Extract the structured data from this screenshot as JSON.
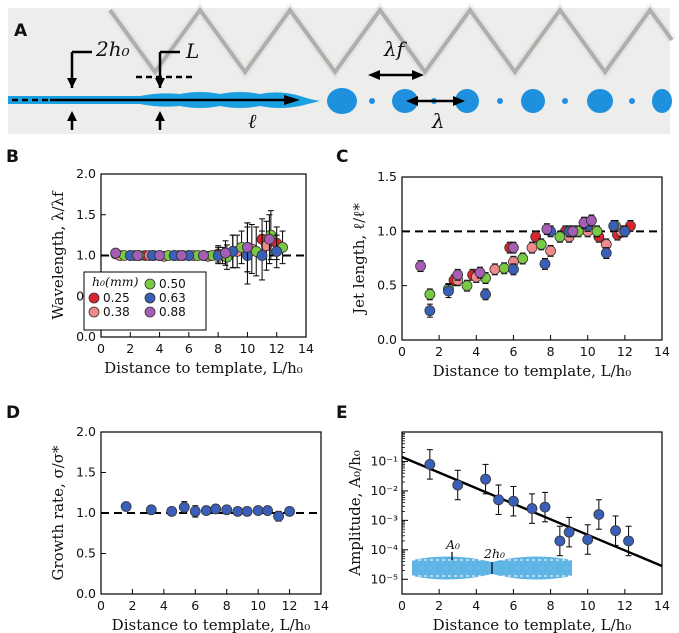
{
  "panel_letters": {
    "a": "A",
    "b": "B",
    "c": "C",
    "d": "D",
    "e": "E"
  },
  "photo": {
    "label_2h0": "2h₀",
    "label_L": "L",
    "label_lambda_f": "λf",
    "label_lambda": "λ",
    "label_ell": "ℓ",
    "colors": {
      "jet": "#1aa0e0",
      "drop": "#1e90dd",
      "background": "#ededeb",
      "template": "#8c8c8c"
    }
  },
  "colors": {
    "h025": "#d9262e",
    "h038": "#f08a8a",
    "h050": "#7ac943",
    "h063": "#3a5fb8",
    "h088": "#a55db5",
    "axis": "#000000",
    "fit_line": "#000000"
  },
  "legend": {
    "title": "h₀(mm)",
    "entries": [
      {
        "key": "h025",
        "label": "0.25"
      },
      {
        "key": "h050",
        "label": "0.50"
      },
      {
        "key": "h038",
        "label": "0.38"
      },
      {
        "key": "h063",
        "label": "0.63"
      },
      {
        "key": "h063b",
        "label": ""
      },
      {
        "key": "h088",
        "label": "0.88"
      }
    ]
  },
  "chart_data": [
    {
      "id": "B",
      "type": "scatter",
      "xlabel": "Distance to template, L/h₀",
      "ylabel": "Wavelength, λ/λf",
      "xlim": [
        0,
        14
      ],
      "ylim": [
        0,
        2.0
      ],
      "xticks": [
        "0",
        "2",
        "4",
        "6",
        "8",
        "10",
        "12",
        "14"
      ],
      "yticks": [
        "0.0",
        "0.5",
        "1.0",
        "1.5",
        "2.0"
      ],
      "reference_line": 1.0,
      "legend_placement": "lower-left",
      "series": [
        {
          "key": "h025",
          "x": [
            1.0,
            2.0,
            3.0,
            4.0,
            5.0,
            6.0,
            7.0,
            8.0,
            9.0,
            10.0,
            11.0,
            12.0
          ],
          "y": [
            1.02,
            1.0,
            1.0,
            1.0,
            1.0,
            1.0,
            1.0,
            1.02,
            1.05,
            1.1,
            1.2,
            1.15
          ],
          "err": [
            0.03,
            0.03,
            0.03,
            0.03,
            0.03,
            0.03,
            0.04,
            0.1,
            0.2,
            0.3,
            0.25,
            0.2
          ]
        },
        {
          "key": "h038",
          "x": [
            1.3,
            2.3,
            3.3,
            4.3,
            5.3,
            6.3,
            7.3,
            8.3,
            9.3,
            10.3,
            11.3
          ],
          "y": [
            1.0,
            1.0,
            1.0,
            0.99,
            1.0,
            1.0,
            0.99,
            1.0,
            1.05,
            1.08,
            1.12
          ],
          "err": [
            0.03,
            0.03,
            0.03,
            0.03,
            0.03,
            0.03,
            0.05,
            0.1,
            0.2,
            0.3,
            0.3
          ]
        },
        {
          "key": "h050",
          "x": [
            1.6,
            2.6,
            3.6,
            4.6,
            5.6,
            6.6,
            7.6,
            8.6,
            9.6,
            10.6,
            11.6,
            12.4
          ],
          "y": [
            1.0,
            1.0,
            1.0,
            1.0,
            1.0,
            1.0,
            1.0,
            0.98,
            1.1,
            1.05,
            1.25,
            1.1
          ],
          "err": [
            0.03,
            0.03,
            0.03,
            0.03,
            0.03,
            0.03,
            0.05,
            0.15,
            0.2,
            0.3,
            0.3,
            0.2
          ]
        },
        {
          "key": "h063",
          "x": [
            2.0,
            3.5,
            5.0,
            6.0,
            7.0,
            8.0,
            9.0,
            10.0,
            11.0,
            12.0
          ],
          "y": [
            1.0,
            1.0,
            1.0,
            1.0,
            1.0,
            1.0,
            1.05,
            1.0,
            1.0,
            1.05
          ],
          "err": [
            0.03,
            0.03,
            0.03,
            0.03,
            0.04,
            0.1,
            0.2,
            0.35,
            0.3,
            0.2
          ]
        },
        {
          "key": "h088",
          "x": [
            1.0,
            2.5,
            4.0,
            5.5,
            7.0,
            8.5,
            10.0,
            11.5
          ],
          "y": [
            1.03,
            1.0,
            1.0,
            1.0,
            1.0,
            1.03,
            1.1,
            1.2
          ],
          "err": [
            0.03,
            0.03,
            0.03,
            0.03,
            0.05,
            0.15,
            0.3,
            0.3
          ]
        }
      ]
    },
    {
      "id": "C",
      "type": "scatter",
      "xlabel": "Distance to template, L/h₀",
      "ylabel": "Jet length, ℓ/ℓ*",
      "xlim": [
        0,
        14
      ],
      "ylim": [
        0,
        1.5
      ],
      "xticks": [
        "0",
        "2",
        "4",
        "6",
        "8",
        "10",
        "12",
        "14"
      ],
      "yticks": [
        "0.0",
        "0.5",
        "1.0",
        "1.5"
      ],
      "reference_line": 1.0,
      "series": [
        {
          "key": "h025",
          "x": [
            2.8,
            3.8,
            5.8,
            7.2,
            8.8,
            10.6,
            11.6,
            12.3
          ],
          "y": [
            0.55,
            0.6,
            0.85,
            0.95,
            1.0,
            0.95,
            0.97,
            1.05
          ],
          "err": [
            0.05,
            0.05,
            0.05,
            0.05,
            0.05,
            0.05,
            0.05,
            0.05
          ]
        },
        {
          "key": "h038",
          "x": [
            3.0,
            4.0,
            5.0,
            6.0,
            7.0,
            8.0,
            9.0,
            10.0,
            11.0,
            11.8
          ],
          "y": [
            0.55,
            0.58,
            0.65,
            0.72,
            0.85,
            0.82,
            0.95,
            1.0,
            0.88,
            1.0
          ],
          "err": [
            0.05,
            0.05,
            0.05,
            0.05,
            0.05,
            0.05,
            0.05,
            0.05,
            0.05,
            0.05
          ]
        },
        {
          "key": "h050",
          "x": [
            1.5,
            2.5,
            3.5,
            4.5,
            5.5,
            6.5,
            7.5,
            8.5,
            9.5,
            10.5,
            11.5
          ],
          "y": [
            0.42,
            0.47,
            0.5,
            0.57,
            0.66,
            0.75,
            0.88,
            0.95,
            1.0,
            1.0,
            1.05
          ],
          "err": [
            0.05,
            0.05,
            0.05,
            0.05,
            0.05,
            0.05,
            0.05,
            0.05,
            0.05,
            0.05,
            0.05
          ]
        },
        {
          "key": "h063",
          "x": [
            1.5,
            2.5,
            4.5,
            6.0,
            7.7,
            8.0,
            9.0,
            10.0,
            11.0,
            11.4,
            12.0
          ],
          "y": [
            0.27,
            0.45,
            0.42,
            0.65,
            0.7,
            1.0,
            1.0,
            1.05,
            0.8,
            1.05,
            1.0
          ],
          "err": [
            0.06,
            0.06,
            0.05,
            0.05,
            0.05,
            0.05,
            0.05,
            0.05,
            0.05,
            0.05,
            0.05
          ]
        },
        {
          "key": "h088",
          "x": [
            1.0,
            3.0,
            4.2,
            6.0,
            7.8,
            9.2,
            9.8,
            10.2
          ],
          "y": [
            0.68,
            0.6,
            0.62,
            0.85,
            1.02,
            1.0,
            1.08,
            1.1
          ],
          "err": [
            0.05,
            0.05,
            0.05,
            0.05,
            0.05,
            0.05,
            0.05,
            0.05
          ]
        }
      ]
    },
    {
      "id": "D",
      "type": "scatter",
      "xlabel": "Distance to template, L/h₀",
      "ylabel": "Growth rate, σ/σ*",
      "xlim": [
        0,
        14
      ],
      "ylim": [
        0,
        2.0
      ],
      "xticks": [
        "0",
        "2",
        "4",
        "6",
        "8",
        "10",
        "12",
        "14"
      ],
      "yticks": [
        "0.0",
        "0.5",
        "1.0",
        "1.5",
        "2.0"
      ],
      "reference_line": 1.0,
      "series": [
        {
          "key": "h063",
          "x": [
            1.6,
            3.2,
            4.5,
            5.3,
            6.0,
            6.7,
            7.3,
            8.0,
            8.7,
            9.3,
            10.0,
            10.6,
            11.3,
            12.0
          ],
          "y": [
            1.08,
            1.04,
            1.02,
            1.07,
            1.02,
            1.03,
            1.05,
            1.04,
            1.02,
            1.02,
            1.03,
            1.03,
            0.96,
            1.02
          ],
          "err": [
            0.04,
            0.04,
            0.04,
            0.07,
            0.07,
            0.05,
            0.05,
            0.05,
            0.04,
            0.04,
            0.05,
            0.05,
            0.06,
            0.04
          ]
        }
      ]
    },
    {
      "id": "E",
      "type": "scatter",
      "xlabel": "Distance to template, L/h₀",
      "ylabel": "Amplitude, A₀/h₀",
      "xlim": [
        0,
        14
      ],
      "ylim_log10": [
        -5.5,
        0
      ],
      "log_scale_y": true,
      "xticks": [
        "0",
        "2",
        "4",
        "6",
        "8",
        "10",
        "12",
        "14"
      ],
      "yticks": [
        "10⁻¹",
        "10⁻²",
        "10⁻³",
        "10⁻⁴",
        "10⁻⁵"
      ],
      "inset_labels": {
        "a0": "A₀",
        "two_h0": "2h₀"
      },
      "fit_line": {
        "x": [
          0,
          14
        ],
        "log10_y": [
          -0.85,
          -4.55
        ]
      },
      "series": [
        {
          "key": "h063",
          "x": [
            1.5,
            3.0,
            4.5,
            5.2,
            6.0,
            7.0,
            7.7,
            8.5,
            9.0,
            10.0,
            10.6,
            11.5,
            12.2
          ],
          "log10_y": [
            -1.1,
            -1.8,
            -1.6,
            -2.3,
            -2.35,
            -2.6,
            -2.55,
            -3.7,
            -3.4,
            -3.65,
            -2.8,
            -3.35,
            -3.7
          ],
          "log10_err": [
            0.5,
            0.5,
            0.5,
            0.5,
            0.5,
            0.5,
            0.5,
            0.5,
            0.5,
            0.5,
            0.5,
            0.5,
            0.5
          ]
        }
      ]
    }
  ]
}
